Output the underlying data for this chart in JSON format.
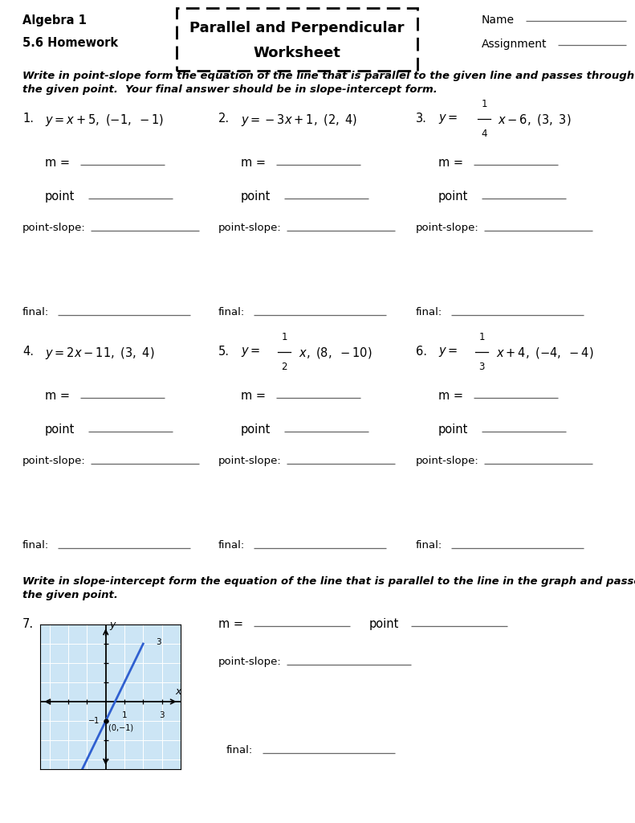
{
  "title_line1": "Parallel and Perpendicular",
  "title_line2": "Worksheet",
  "algebra_label": "Algebra 1",
  "homework_label": "5.6 Homework",
  "name_label": "Name",
  "assignment_label": "Assignment",
  "instructions1": "Write in point-slope form the equation of the line that is parallel to the given line and passes through\nthe given point.  Your final answer should be in slope-intercept form.",
  "instructions2": "Write in slope-intercept form the equation of the line that is parallel to the line in the graph and passes through\nthe given point.",
  "bg_color": "#ffffff",
  "text_color": "#000000",
  "line_color": "#888888",
  "fig_w": 7.91,
  "fig_h": 10.24,
  "dpi": 100
}
